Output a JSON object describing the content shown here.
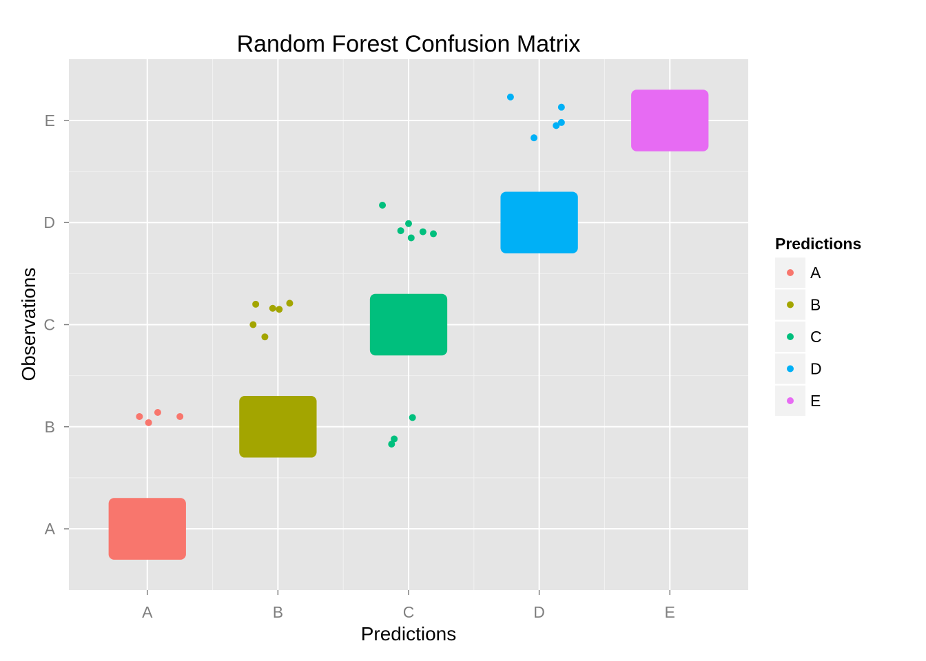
{
  "chart_data": {
    "type": "scatter",
    "title": "Random Forest Confusion Matrix",
    "xlabel": "Predictions",
    "ylabel": "Observations",
    "x_categories": [
      "A",
      "B",
      "C",
      "D",
      "E"
    ],
    "y_categories": [
      "A",
      "B",
      "C",
      "D",
      "E"
    ],
    "jitter": 0.275,
    "grid": true,
    "legend": {
      "title": "Predictions",
      "position": "right",
      "entries": [
        "A",
        "B",
        "C",
        "D",
        "E"
      ]
    },
    "colors": {
      "A": "#F8766D",
      "B": "#A3A500",
      "C": "#00BF7D",
      "D": "#00B0F6",
      "E": "#E76BF3"
    },
    "panel_background": "#E5E5E5",
    "dense_clusters": [
      {
        "prediction": "A",
        "observation": "A"
      },
      {
        "prediction": "B",
        "observation": "B"
      },
      {
        "prediction": "C",
        "observation": "C"
      },
      {
        "prediction": "D",
        "observation": "D"
      },
      {
        "prediction": "E",
        "observation": "E"
      }
    ],
    "points": [
      {
        "prediction": "A",
        "x": 0.94,
        "y": 2.1
      },
      {
        "prediction": "A",
        "x": 1.01,
        "y": 2.04
      },
      {
        "prediction": "A",
        "x": 1.08,
        "y": 2.14
      },
      {
        "prediction": "A",
        "x": 1.25,
        "y": 2.1
      },
      {
        "prediction": "B",
        "x": 1.81,
        "y": 3.0
      },
      {
        "prediction": "B",
        "x": 1.83,
        "y": 3.2
      },
      {
        "prediction": "B",
        "x": 1.9,
        "y": 2.88
      },
      {
        "prediction": "B",
        "x": 1.96,
        "y": 3.16
      },
      {
        "prediction": "B",
        "x": 2.01,
        "y": 3.15
      },
      {
        "prediction": "B",
        "x": 2.09,
        "y": 3.21
      },
      {
        "prediction": "C",
        "x": 2.8,
        "y": 4.17
      },
      {
        "prediction": "C",
        "x": 2.94,
        "y": 3.92
      },
      {
        "prediction": "C",
        "x": 3.0,
        "y": 3.99
      },
      {
        "prediction": "C",
        "x": 3.02,
        "y": 3.85
      },
      {
        "prediction": "C",
        "x": 3.11,
        "y": 3.91
      },
      {
        "prediction": "C",
        "x": 3.19,
        "y": 3.89
      },
      {
        "prediction": "C",
        "x": 3.03,
        "y": 2.09
      },
      {
        "prediction": "C",
        "x": 2.89,
        "y": 1.88
      },
      {
        "prediction": "C",
        "x": 2.87,
        "y": 1.83
      },
      {
        "prediction": "D",
        "x": 3.78,
        "y": 5.23
      },
      {
        "prediction": "D",
        "x": 3.96,
        "y": 4.83
      },
      {
        "prediction": "D",
        "x": 4.13,
        "y": 4.95
      },
      {
        "prediction": "D",
        "x": 4.17,
        "y": 4.98
      },
      {
        "prediction": "D",
        "x": 4.17,
        "y": 5.13
      }
    ]
  }
}
